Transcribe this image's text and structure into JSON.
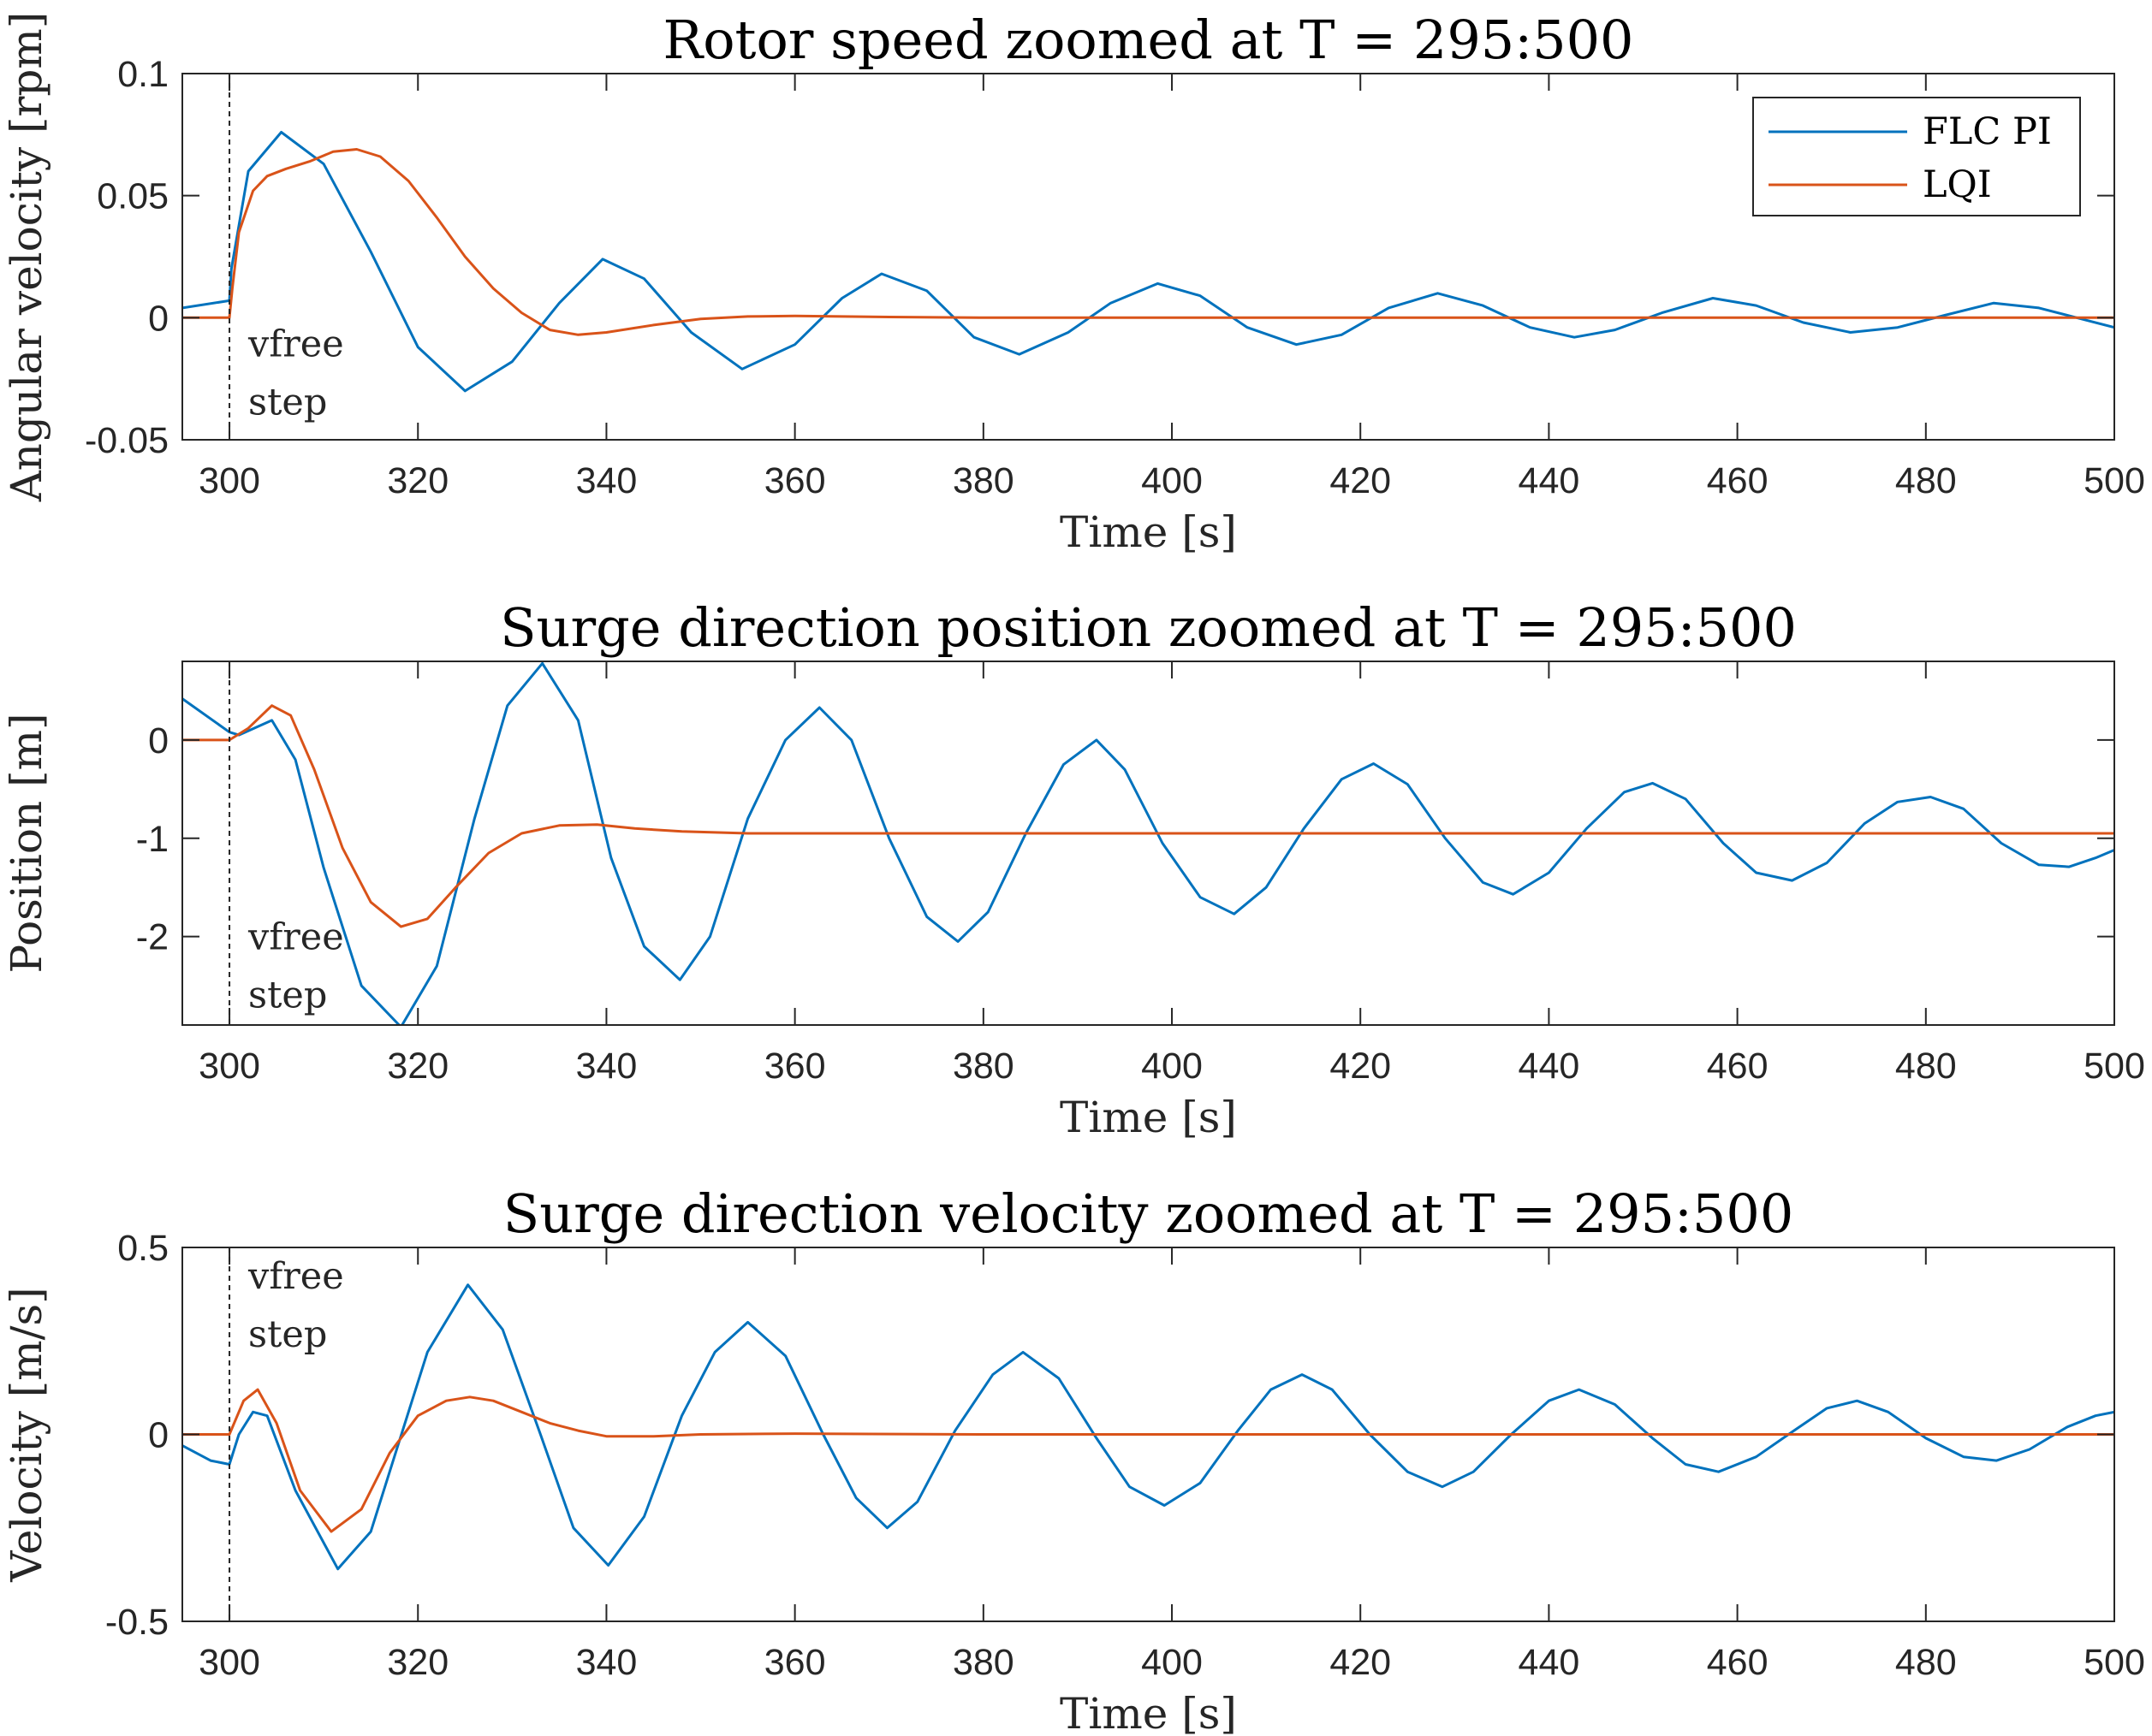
{
  "colors": {
    "FLC PI": "#0072BD",
    "LQI": "#D95319",
    "axis": "#262626",
    "background": "#ffffff"
  },
  "chart_data": [
    {
      "type": "line",
      "title": "Rotor speed zoomed at T = 295:500",
      "xlabel": "Time [s]",
      "ylabel": "Angular velocity [rpm]",
      "xlim": [
        295,
        500
      ],
      "ylim": [
        -0.05,
        0.1
      ],
      "xticks": [
        "300",
        "320",
        "340",
        "360",
        "380",
        "400",
        "420",
        "440",
        "460",
        "480",
        "500"
      ],
      "yticks": [
        "-0.05",
        "0",
        "0.05",
        "0.1"
      ],
      "grid": false,
      "legend": {
        "position": "top-right",
        "entries": [
          "FLC PI",
          "LQI"
        ]
      },
      "annotation": {
        "x": 300,
        "lines": [
          "vfree",
          "step"
        ]
      },
      "series": [
        {
          "name": "FLC PI",
          "x": [
            295,
            300,
            300.2,
            302,
            305.5,
            310,
            315,
            320,
            325,
            330,
            335,
            339.6,
            344,
            349,
            354.4,
            360,
            365,
            369.2,
            374,
            379,
            383.8,
            389,
            393.5,
            398.5,
            403,
            408,
            413.2,
            418,
            423,
            428.2,
            433,
            438,
            442.7,
            447,
            452,
            457.4,
            462,
            467,
            472,
            477,
            482,
            487.2,
            492,
            497,
            500
          ],
          "y": [
            0.004,
            0.007,
            0.02,
            0.06,
            0.076,
            0.063,
            0.027,
            -0.012,
            -0.03,
            -0.018,
            0.006,
            0.024,
            0.016,
            -0.006,
            -0.021,
            -0.011,
            0.008,
            0.018,
            0.011,
            -0.008,
            -0.015,
            -0.006,
            0.006,
            0.014,
            0.009,
            -0.004,
            -0.011,
            -0.007,
            0.004,
            0.01,
            0.005,
            -0.004,
            -0.008,
            -0.005,
            0.002,
            0.008,
            0.005,
            -0.002,
            -0.006,
            -0.004,
            0.001,
            0.006,
            0.004,
            -0.001,
            -0.004
          ]
        },
        {
          "name": "LQI",
          "x": [
            295,
            300,
            300.3,
            301,
            302.5,
            304,
            306,
            308.5,
            311,
            313.5,
            316,
            319,
            322,
            325,
            328,
            331,
            334,
            337,
            340,
            345,
            350,
            355,
            360,
            370,
            380,
            400,
            450,
            500
          ],
          "y": [
            0,
            0,
            0.012,
            0.035,
            0.052,
            0.058,
            0.061,
            0.064,
            0.068,
            0.069,
            0.066,
            0.056,
            0.041,
            0.025,
            0.012,
            0.002,
            -0.005,
            -0.007,
            -0.006,
            -0.003,
            -0.0005,
            0.0005,
            0.0007,
            0.0003,
            0,
            0,
            0,
            0
          ]
        }
      ]
    },
    {
      "type": "line",
      "title": "Surge direction position zoomed at T = 295:500",
      "xlabel": "Time [s]",
      "ylabel": "Position [m]",
      "xlim": [
        295,
        500
      ],
      "ylim": [
        -2.9,
        0.8
      ],
      "xticks": [
        "300",
        "320",
        "340",
        "360",
        "380",
        "400",
        "420",
        "440",
        "460",
        "480",
        "500"
      ],
      "yticks": [
        "-2",
        "-1",
        "0"
      ],
      "grid": false,
      "annotation": {
        "x": 300,
        "lines": [
          "vfree",
          "step"
        ]
      },
      "series": [
        {
          "name": "FLC PI",
          "x": [
            295,
            300,
            301,
            304.5,
            307,
            310,
            314,
            318.2,
            322,
            326,
            329.5,
            333.2,
            337,
            340.5,
            344,
            347.8,
            351,
            355,
            359,
            362.6,
            366,
            370,
            374,
            377.3,
            380.5,
            384.5,
            388.5,
            392,
            395,
            399,
            403,
            406.6,
            410,
            414,
            418,
            421.4,
            425,
            429,
            433,
            436.2,
            440,
            444,
            448,
            451,
            454.5,
            458.5,
            462,
            465.8,
            469.5,
            473.5,
            477,
            480.5,
            484,
            488,
            492,
            495.2,
            498,
            500
          ],
          "y": [
            0.42,
            0.08,
            0.05,
            0.2,
            -0.2,
            -1.3,
            -2.5,
            -2.92,
            -2.3,
            -0.8,
            0.35,
            0.78,
            0.2,
            -1.2,
            -2.1,
            -2.44,
            -2.0,
            -0.8,
            0.0,
            0.33,
            0.0,
            -1.0,
            -1.8,
            -2.05,
            -1.75,
            -0.95,
            -0.25,
            0.0,
            -0.3,
            -1.05,
            -1.6,
            -1.77,
            -1.5,
            -0.9,
            -0.4,
            -0.24,
            -0.45,
            -1.0,
            -1.45,
            -1.57,
            -1.35,
            -0.9,
            -0.53,
            -0.44,
            -0.6,
            -1.05,
            -1.35,
            -1.43,
            -1.25,
            -0.85,
            -0.63,
            -0.58,
            -0.7,
            -1.05,
            -1.27,
            -1.29,
            -1.2,
            -1.12
          ]
        },
        {
          "name": "LQI",
          "x": [
            295,
            300,
            302,
            304.5,
            306.5,
            309,
            312,
            315,
            318.2,
            321,
            324,
            327.5,
            331,
            335,
            339,
            343,
            348,
            355,
            365,
            380,
            400,
            450,
            500
          ],
          "y": [
            0,
            0,
            0.12,
            0.35,
            0.25,
            -0.3,
            -1.1,
            -1.65,
            -1.9,
            -1.82,
            -1.5,
            -1.15,
            -0.95,
            -0.87,
            -0.86,
            -0.9,
            -0.93,
            -0.95,
            -0.95,
            -0.95,
            -0.95,
            -0.95,
            -0.95
          ]
        }
      ]
    },
    {
      "type": "line",
      "title": "Surge direction velocity zoomed at T = 295:500",
      "xlabel": "Time [s]",
      "ylabel": "Velocity [m/s]",
      "xlim": [
        295,
        500
      ],
      "ylim": [
        -0.5,
        0.5
      ],
      "xticks": [
        "300",
        "320",
        "340",
        "360",
        "380",
        "400",
        "420",
        "440",
        "460",
        "480",
        "500"
      ],
      "yticks": [
        "-0.5",
        "0",
        "0.5"
      ],
      "grid": false,
      "annotation": {
        "x": 300,
        "lines": [
          "vfree",
          "step"
        ]
      },
      "series": [
        {
          "name": "FLC PI",
          "x": [
            295,
            298,
            300,
            301,
            302.5,
            304,
            307,
            311.5,
            315,
            318,
            321,
            325.3,
            329,
            333,
            336.5,
            340.2,
            344,
            348,
            351.5,
            355,
            359,
            363,
            366.5,
            369.8,
            373,
            377,
            381,
            384.2,
            388,
            392,
            395.5,
            399.2,
            403,
            407,
            410.5,
            413.8,
            417,
            421,
            425,
            428.7,
            432,
            436,
            440,
            443.2,
            447,
            451,
            454.5,
            458,
            462,
            466,
            469.5,
            472.7,
            476,
            480,
            484,
            487.5,
            491,
            495,
            498,
            500
          ],
          "y": [
            -0.03,
            -0.07,
            -0.08,
            0.0,
            0.06,
            0.05,
            -0.15,
            -0.36,
            -0.26,
            -0.02,
            0.22,
            0.4,
            0.28,
            0.0,
            -0.25,
            -0.35,
            -0.22,
            0.05,
            0.22,
            0.3,
            0.21,
            0.0,
            -0.17,
            -0.25,
            -0.18,
            0.01,
            0.16,
            0.22,
            0.15,
            -0.01,
            -0.14,
            -0.19,
            -0.13,
            0.01,
            0.12,
            0.16,
            0.12,
            0.0,
            -0.1,
            -0.14,
            -0.1,
            0.0,
            0.09,
            0.12,
            0.08,
            -0.01,
            -0.08,
            -0.1,
            -0.06,
            0.01,
            0.07,
            0.09,
            0.06,
            -0.01,
            -0.06,
            -0.07,
            -0.04,
            0.02,
            0.05,
            0.06
          ]
        },
        {
          "name": "LQI",
          "x": [
            295,
            300,
            301.5,
            303,
            305,
            307.5,
            310.8,
            314,
            317,
            320,
            323,
            325.5,
            328,
            331,
            334,
            337,
            340,
            345,
            350,
            360,
            380,
            400,
            450,
            500
          ],
          "y": [
            0,
            0,
            0.09,
            0.12,
            0.03,
            -0.15,
            -0.26,
            -0.2,
            -0.05,
            0.05,
            0.09,
            0.1,
            0.09,
            0.06,
            0.03,
            0.01,
            -0.005,
            -0.005,
            0.0,
            0.002,
            0.0,
            0.0,
            0.0,
            0.0
          ]
        }
      ]
    }
  ]
}
